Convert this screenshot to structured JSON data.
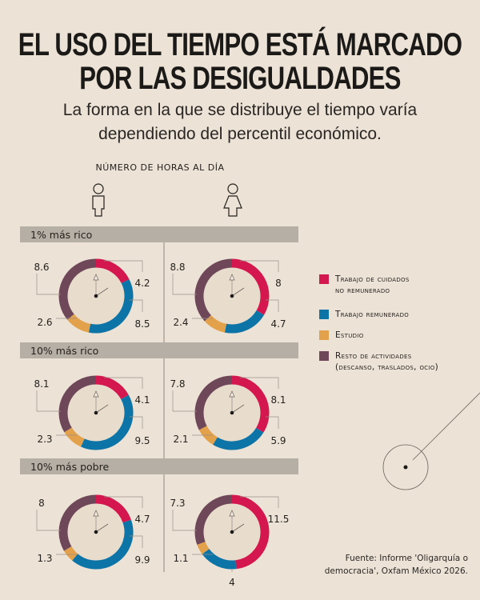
{
  "title": {
    "line1": "EL USO DEL TIEMPO ESTÁ MARCADO",
    "line2": "POR LAS DESIGUALDADES"
  },
  "subtitle": {
    "line1": "La forma en la que se distribuye el tiempo varía",
    "line2": "dependiendo del percentil económico."
  },
  "header": "NÚMERO DE HORAS AL DÍA",
  "columns": [
    {
      "icon": "man-icon"
    },
    {
      "icon": "woman-icon"
    }
  ],
  "colors": {
    "background": "#ece3d6",
    "care": "#d4174f",
    "paid": "#0d74a8",
    "study": "#e2a14a",
    "rest": "#6e4858",
    "section_bar": "#b6afa5"
  },
  "legend": [
    {
      "label": "Trabajo de cuidados",
      "label2": "no remunerado",
      "color": "#d4174f"
    },
    {
      "label": "Trabajo remunerado",
      "color": "#0d74a8"
    },
    {
      "label": "Estudio",
      "color": "#e2a14a"
    },
    {
      "label": "Resto de actividades",
      "label2": "(descanso, traslados, ocio)",
      "color": "#6e4858"
    }
  ],
  "chart_data": {
    "type": "pie",
    "variant": "donut",
    "categories": [
      "Trabajo de cuidados no remunerado",
      "Trabajo remunerado",
      "Estudio",
      "Resto de actividades"
    ],
    "groups": [
      {
        "label": "1% más rico",
        "men": [
          4.2,
          8.5,
          2.6,
          8.6
        ],
        "women": [
          8,
          4.7,
          2.4,
          8.8
        ]
      },
      {
        "label": "10% más rico",
        "men": [
          4.1,
          9.5,
          2.3,
          8.1
        ],
        "women": [
          8.1,
          5.9,
          2.1,
          7.8
        ]
      },
      {
        "label": "10% más pobre",
        "men": [
          4.7,
          9.9,
          1.3,
          8
        ],
        "women": [
          11.5,
          4,
          1.1,
          7.3
        ]
      }
    ]
  },
  "source": {
    "line1": "Fuente: Informe 'Oligarquía o",
    "line2": "democracia', Oxfam México 2026."
  }
}
